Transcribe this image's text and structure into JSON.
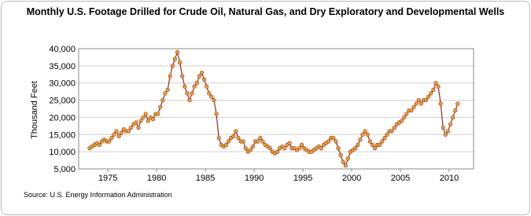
{
  "chart_data": {
    "type": "line",
    "title": "Monthly U.S. Footage Drilled for Crude Oil, Natural Gas, and Dry Exploratory and Developmental Wells",
    "y_label": "Thousand Feet",
    "source": "Source: U.S. Energy Information Administration",
    "line_color": "#8c2a1c",
    "marker_color": "#e8a23a",
    "grid": true,
    "xlim": [
      1972,
      2012.5
    ],
    "xticks": [
      1975,
      1980,
      1985,
      1990,
      1995,
      2000,
      2005,
      2010
    ],
    "ylim": [
      5000,
      40000
    ],
    "yticks": [
      {
        "value": 5000,
        "label": "5,000"
      },
      {
        "value": 10000,
        "label": "10,000"
      },
      {
        "value": 15000,
        "label": "15,000"
      },
      {
        "value": 20000,
        "label": "20,000"
      },
      {
        "value": 25000,
        "label": "25,000"
      },
      {
        "value": 30000,
        "label": "30,000"
      },
      {
        "value": 35000,
        "label": "35,000"
      },
      {
        "value": 40000,
        "label": "40,000"
      }
    ],
    "x": [
      1973.125,
      1973.375,
      1973.625,
      1973.875,
      1974.125,
      1974.375,
      1974.625,
      1974.875,
      1975.125,
      1975.375,
      1975.625,
      1975.875,
      1976.125,
      1976.375,
      1976.625,
      1976.875,
      1977.125,
      1977.375,
      1977.625,
      1977.875,
      1978.125,
      1978.375,
      1978.625,
      1978.875,
      1979.125,
      1979.375,
      1979.625,
      1979.875,
      1980.125,
      1980.375,
      1980.625,
      1980.875,
      1981.125,
      1981.375,
      1981.625,
      1981.875,
      1982.125,
      1982.375,
      1982.625,
      1982.875,
      1983.125,
      1983.375,
      1983.625,
      1983.875,
      1984.125,
      1984.375,
      1984.625,
      1984.875,
      1985.125,
      1985.375,
      1985.625,
      1985.875,
      1986.125,
      1986.375,
      1986.625,
      1986.875,
      1987.125,
      1987.375,
      1987.625,
      1987.875,
      1988.125,
      1988.375,
      1988.625,
      1988.875,
      1989.125,
      1989.375,
      1989.625,
      1989.875,
      1990.125,
      1990.375,
      1990.625,
      1990.875,
      1991.125,
      1991.375,
      1991.625,
      1991.875,
      1992.125,
      1992.375,
      1992.625,
      1992.875,
      1993.125,
      1993.375,
      1993.625,
      1993.875,
      1994.125,
      1994.375,
      1994.625,
      1994.875,
      1995.125,
      1995.375,
      1995.625,
      1995.875,
      1996.125,
      1996.375,
      1996.625,
      1996.875,
      1997.125,
      1997.375,
      1997.625,
      1997.875,
      1998.125,
      1998.375,
      1998.625,
      1998.875,
      1999.125,
      1999.375,
      1999.625,
      1999.875,
      2000.125,
      2000.375,
      2000.625,
      2000.875,
      2001.125,
      2001.375,
      2001.625,
      2001.875,
      2002.125,
      2002.375,
      2002.625,
      2002.875,
      2003.125,
      2003.375,
      2003.625,
      2003.875,
      2004.125,
      2004.375,
      2004.625,
      2004.875,
      2005.125,
      2005.375,
      2005.625,
      2005.875,
      2006.125,
      2006.375,
      2006.625,
      2006.875,
      2007.125,
      2007.375,
      2007.625,
      2007.875,
      2008.125,
      2008.375,
      2008.625,
      2008.875,
      2009.125,
      2009.375,
      2009.625,
      2009.875,
      2010.125,
      2010.375,
      2010.625,
      2010.875
    ],
    "values": [
      11000,
      11500,
      12000,
      12500,
      12000,
      13000,
      13500,
      13000,
      13000,
      14000,
      15000,
      16000,
      14500,
      15500,
      16500,
      16000,
      16000,
      17000,
      18000,
      18500,
      17000,
      19000,
      20000,
      21000,
      19000,
      20000,
      19500,
      21000,
      21000,
      23000,
      25000,
      27000,
      28000,
      32000,
      35000,
      37000,
      39000,
      36000,
      32000,
      29000,
      27000,
      25000,
      27000,
      29000,
      30000,
      32000,
      33000,
      31000,
      29000,
      27000,
      26000,
      25000,
      21000,
      14000,
      12000,
      11500,
      12000,
      13000,
      14000,
      14500,
      16000,
      14000,
      13000,
      13000,
      11000,
      10000,
      10500,
      11500,
      13000,
      13000,
      14000,
      13000,
      12000,
      11500,
      11000,
      10000,
      9500,
      10000,
      11000,
      11500,
      11000,
      12000,
      12500,
      11000,
      11000,
      10500,
      11000,
      12000,
      11000,
      10500,
      10000,
      10000,
      10500,
      11000,
      11500,
      11000,
      12000,
      12500,
      13000,
      14000,
      14000,
      13000,
      11000,
      9000,
      7000,
      6000,
      8000,
      10000,
      10500,
      11000,
      12000,
      13500,
      15000,
      16000,
      15000,
      13000,
      12000,
      11000,
      12000,
      12000,
      13000,
      14000,
      15000,
      16000,
      16000,
      17000,
      18000,
      18500,
      19000,
      20000,
      21000,
      22000,
      22000,
      23000,
      24000,
      25000,
      24000,
      25000,
      25000,
      26000,
      27000,
      28000,
      30000,
      29000,
      24000,
      17000,
      15000,
      16000,
      18000,
      20000,
      22000,
      24000
    ]
  }
}
